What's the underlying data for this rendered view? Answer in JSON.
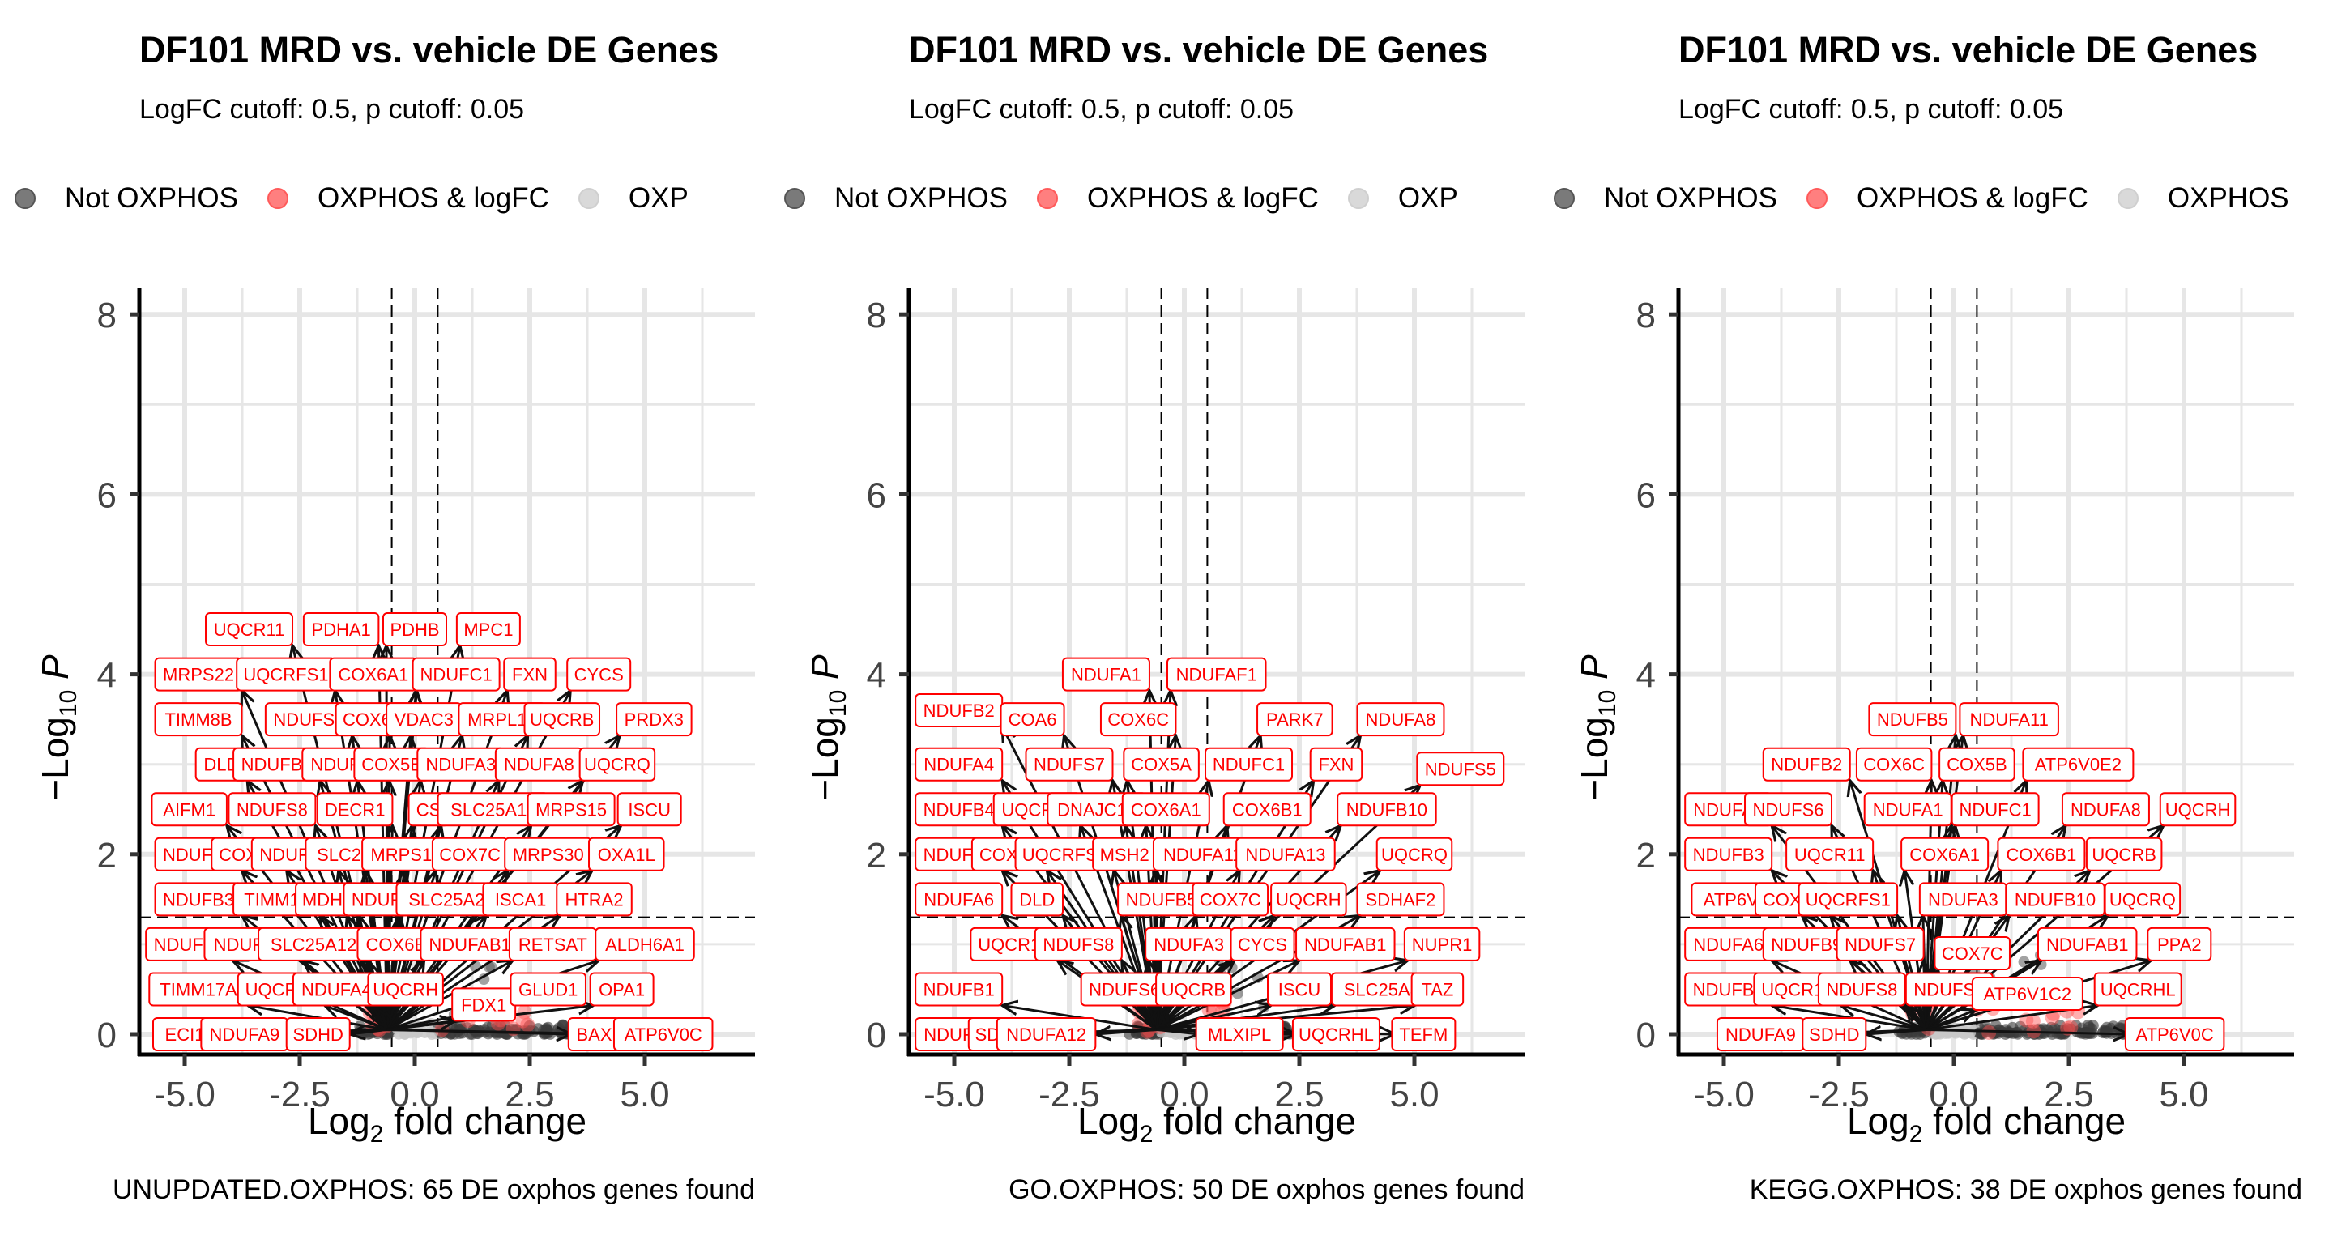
{
  "colors": {
    "not_oxphos": "#555555",
    "oxphos_logfc": "#ff4d4d",
    "oxphos": "#c8c8c8",
    "label_text": "#ff0000",
    "label_border": "#ff0000",
    "grid": "#e6e6e6",
    "axis": "#000000"
  },
  "panels": [
    {
      "title": "DF101 MRD vs. vehicle DE Genes",
      "subtitle": "LogFC cutoff: 0.5, p cutoff: 0.05",
      "legend": [
        "Not OXPHOS",
        "OXPHOS & logFC",
        "OXP"
      ],
      "caption": "UNUPDATED.OXPHOS: 65 DE oxphos genes found"
    },
    {
      "title": "DF101 MRD vs. vehicle DE Genes",
      "subtitle": "LogFC cutoff: 0.5, p cutoff: 0.05",
      "legend": [
        "Not OXPHOS",
        "OXPHOS & logFC",
        "OXP"
      ],
      "caption": "GO.OXPHOS: 50 DE oxphos genes found"
    },
    {
      "title": "DF101 MRD vs. vehicle DE Genes",
      "subtitle": "LogFC cutoff: 0.5, p cutoff: 0.05",
      "legend": [
        "Not OXPHOS",
        "OXPHOS & logFC",
        "OXPHOS"
      ],
      "caption": "KEGG.OXPHOS: 38 DE oxphos genes found"
    }
  ],
  "chart_data": [
    {
      "type": "scatter",
      "title": "DF101 MRD vs. vehicle DE Genes",
      "subtitle": "LogFC cutoff: 0.5, p cutoff: 0.05",
      "xlabel": "Log2 fold change",
      "ylabel": "-Log10 P",
      "xlim": [
        -6,
        7.3
      ],
      "ylim": [
        0,
        8.3
      ],
      "xticks": [
        -5.0,
        -2.5,
        0.0,
        2.5,
        5.0
      ],
      "xtick_labels": [
        "-5.0",
        "-2.5",
        "0.0",
        "2.5",
        "5.0"
      ],
      "yticks": [
        0,
        2,
        4,
        6,
        8
      ],
      "ytick_labels": [
        "0",
        "2",
        "4",
        "6",
        "8"
      ],
      "fc_cutoff": 0.5,
      "p_cutoff_line": 1.3,
      "grid": true,
      "legend_position": "top",
      "caption": "UNUPDATED.OXPHOS: 65 DE oxphos genes found",
      "labels": [
        {
          "gene": "UQCR11",
          "x": -3.6,
          "y": 4.5
        },
        {
          "gene": "PDHA1",
          "x": -1.6,
          "y": 4.5
        },
        {
          "gene": "PDHB",
          "x": 0.0,
          "y": 4.5
        },
        {
          "gene": "MPC1",
          "x": 1.6,
          "y": 4.5
        },
        {
          "gene": "MRPS22",
          "x": -4.7,
          "y": 4.0
        },
        {
          "gene": "UQCRFS1",
          "x": -2.8,
          "y": 4.0
        },
        {
          "gene": "COX6A1",
          "x": -0.9,
          "y": 4.0
        },
        {
          "gene": "NDUFC1",
          "x": 0.9,
          "y": 4.0
        },
        {
          "gene": "FXN",
          "x": 2.5,
          "y": 4.0
        },
        {
          "gene": "CYCS",
          "x": 4.0,
          "y": 4.0
        },
        {
          "gene": "TIMM8B",
          "x": -4.7,
          "y": 3.5
        },
        {
          "gene": "NDUFS7",
          "x": -2.3,
          "y": 3.5
        },
        {
          "gene": "COX6C",
          "x": -0.9,
          "y": 3.5
        },
        {
          "gene": "VDAC3",
          "x": 0.2,
          "y": 3.5
        },
        {
          "gene": "MRPL15",
          "x": 1.9,
          "y": 3.5
        },
        {
          "gene": "UQCRB",
          "x": 3.2,
          "y": 3.5
        },
        {
          "gene": "PRDX3",
          "x": 5.2,
          "y": 3.5
        },
        {
          "gene": "DLD",
          "x": -4.2,
          "y": 3.0
        },
        {
          "gene": "NDUFB2",
          "x": -3.0,
          "y": 3.0
        },
        {
          "gene": "NDUFA1",
          "x": -1.5,
          "y": 3.0
        },
        {
          "gene": "COX5B",
          "x": -0.5,
          "y": 3.0
        },
        {
          "gene": "NDUFA3",
          "x": 1.0,
          "y": 3.0
        },
        {
          "gene": "NDUFA8",
          "x": 2.7,
          "y": 3.0
        },
        {
          "gene": "UQCRQ",
          "x": 4.4,
          "y": 3.0
        },
        {
          "gene": "AIFM1",
          "x": -4.9,
          "y": 2.5
        },
        {
          "gene": "NDUFS8",
          "x": -3.1,
          "y": 2.5
        },
        {
          "gene": "DECR1",
          "x": -1.3,
          "y": 2.5
        },
        {
          "gene": "CS",
          "x": 0.3,
          "y": 2.5
        },
        {
          "gene": "SLC25A11",
          "x": 1.7,
          "y": 2.5
        },
        {
          "gene": "MRPS15",
          "x": 3.4,
          "y": 2.5
        },
        {
          "gene": "ISCU",
          "x": 5.1,
          "y": 2.5
        },
        {
          "gene": "NDUFB8",
          "x": -4.7,
          "y": 2.0
        },
        {
          "gene": "COX7B",
          "x": -3.6,
          "y": 2.0
        },
        {
          "gene": "NDUFS6",
          "x": -2.6,
          "y": 2.0
        },
        {
          "gene": "SLC25A3",
          "x": -1.3,
          "y": 2.0
        },
        {
          "gene": "MRPS11",
          "x": -0.2,
          "y": 2.0
        },
        {
          "gene": "COX7C",
          "x": 1.2,
          "y": 2.0
        },
        {
          "gene": "MRPS30",
          "x": 2.9,
          "y": 2.0
        },
        {
          "gene": "OXA1L",
          "x": 4.6,
          "y": 2.0
        },
        {
          "gene": "NDUFB3",
          "x": -4.7,
          "y": 1.5
        },
        {
          "gene": "TIMM10",
          "x": -3.0,
          "y": 1.5
        },
        {
          "gene": "MDH2",
          "x": -1.9,
          "y": 1.5
        },
        {
          "gene": "NDUFB5",
          "x": -0.6,
          "y": 1.5
        },
        {
          "gene": "SLC25A20",
          "x": 0.8,
          "y": 1.5
        },
        {
          "gene": "ISCA1",
          "x": 2.3,
          "y": 1.5
        },
        {
          "gene": "HTRA2",
          "x": 3.9,
          "y": 1.5
        },
        {
          "gene": "NDUFB9",
          "x": -4.9,
          "y": 1.0
        },
        {
          "gene": "NDUFA13",
          "x": -3.5,
          "y": 1.0
        },
        {
          "gene": "SLC25A12",
          "x": -2.2,
          "y": 1.0
        },
        {
          "gene": "COX6B1",
          "x": -0.3,
          "y": 1.0
        },
        {
          "gene": "NDUFAB1",
          "x": 1.2,
          "y": 1.0
        },
        {
          "gene": "RETSAT",
          "x": 3.0,
          "y": 1.0
        },
        {
          "gene": "ALDH6A1",
          "x": 5.0,
          "y": 1.0
        },
        {
          "gene": "TIMM17A",
          "x": -4.7,
          "y": 0.5
        },
        {
          "gene": "UQCR10",
          "x": -2.9,
          "y": 0.5
        },
        {
          "gene": "NDUFA4",
          "x": -1.7,
          "y": 0.5
        },
        {
          "gene": "UQCRH",
          "x": -0.2,
          "y": 0.5
        },
        {
          "gene": "FDX1",
          "x": 1.5,
          "y": 0.33
        },
        {
          "gene": "GLUD1",
          "x": 2.9,
          "y": 0.5
        },
        {
          "gene": "OPA1",
          "x": 4.5,
          "y": 0.5
        },
        {
          "gene": "ECI1",
          "x": -5.0,
          "y": 0.0
        },
        {
          "gene": "NDUFA9",
          "x": -3.7,
          "y": 0.0
        },
        {
          "gene": "SDHD",
          "x": -2.1,
          "y": 0.0
        },
        {
          "gene": "BAX",
          "x": 3.9,
          "y": 0.0
        },
        {
          "gene": "ATP6V0C",
          "x": 5.4,
          "y": 0.0
        }
      ]
    },
    {
      "type": "scatter",
      "title": "DF101 MRD vs. vehicle DE Genes",
      "subtitle": "LogFC cutoff: 0.5, p cutoff: 0.05",
      "xlabel": "Log2 fold change",
      "ylabel": "-Log10 P",
      "xlim": [
        -6,
        7.3
      ],
      "ylim": [
        0,
        8.3
      ],
      "xticks": [
        -5.0,
        -2.5,
        0.0,
        2.5,
        5.0
      ],
      "xtick_labels": [
        "-5.0",
        "-2.5",
        "0.0",
        "2.5",
        "5.0"
      ],
      "yticks": [
        0,
        2,
        4,
        6,
        8
      ],
      "ytick_labels": [
        "0",
        "2",
        "4",
        "6",
        "8"
      ],
      "fc_cutoff": 0.5,
      "p_cutoff_line": 1.3,
      "grid": true,
      "legend_position": "top",
      "caption": "GO.OXPHOS: 50 DE oxphos genes found",
      "labels": [
        {
          "gene": "NDUFA1",
          "x": -1.7,
          "y": 4.0
        },
        {
          "gene": "NDUFAF1",
          "x": 0.7,
          "y": 4.0
        },
        {
          "gene": "NDUFB2",
          "x": -4.9,
          "y": 3.6
        },
        {
          "gene": "COA6",
          "x": -3.3,
          "y": 3.5
        },
        {
          "gene": "COX6C",
          "x": -1.0,
          "y": 3.5
        },
        {
          "gene": "PARK7",
          "x": 2.4,
          "y": 3.5
        },
        {
          "gene": "NDUFA8",
          "x": 4.7,
          "y": 3.5
        },
        {
          "gene": "NDUFA4",
          "x": -4.9,
          "y": 3.0
        },
        {
          "gene": "NDUFS7",
          "x": -2.5,
          "y": 3.0
        },
        {
          "gene": "COX5A",
          "x": -0.5,
          "y": 3.0
        },
        {
          "gene": "NDUFC1",
          "x": 1.4,
          "y": 3.0
        },
        {
          "gene": "FXN",
          "x": 3.3,
          "y": 3.0
        },
        {
          "gene": "NDUFS5",
          "x": 6.0,
          "y": 2.95
        },
        {
          "gene": "NDUFB4",
          "x": -4.9,
          "y": 2.5
        },
        {
          "gene": "UQCR11",
          "x": -3.2,
          "y": 2.5
        },
        {
          "gene": "DNAJC15",
          "x": -1.9,
          "y": 2.5
        },
        {
          "gene": "COX6A1",
          "x": -0.4,
          "y": 2.5
        },
        {
          "gene": "COX6B1",
          "x": 1.8,
          "y": 2.5
        },
        {
          "gene": "NDUFB10",
          "x": 4.4,
          "y": 2.5
        },
        {
          "gene": "NDUFB3",
          "x": -4.9,
          "y": 2.0
        },
        {
          "gene": "COX7B",
          "x": -3.8,
          "y": 2.0
        },
        {
          "gene": "UQCRFS1",
          "x": -2.6,
          "y": 2.0
        },
        {
          "gene": "MSH2",
          "x": -1.3,
          "y": 2.0
        },
        {
          "gene": "NDUFA11",
          "x": 0.4,
          "y": 2.0
        },
        {
          "gene": "NDUFA13",
          "x": 2.2,
          "y": 2.0
        },
        {
          "gene": "UQCRQ",
          "x": 5.0,
          "y": 2.0
        },
        {
          "gene": "NDUFA6",
          "x": -4.9,
          "y": 1.5
        },
        {
          "gene": "DLD",
          "x": -3.2,
          "y": 1.5
        },
        {
          "gene": "NDUFB5",
          "x": -0.5,
          "y": 1.5
        },
        {
          "gene": "COX7C",
          "x": 1.0,
          "y": 1.5
        },
        {
          "gene": "UQCRH",
          "x": 2.7,
          "y": 1.5
        },
        {
          "gene": "SDHAF2",
          "x": 4.7,
          "y": 1.5
        },
        {
          "gene": "UQCR10",
          "x": -3.7,
          "y": 1.0
        },
        {
          "gene": "NDUFS8",
          "x": -2.3,
          "y": 1.0
        },
        {
          "gene": "NDUFA3",
          "x": 0.1,
          "y": 1.0
        },
        {
          "gene": "CYCS",
          "x": 1.7,
          "y": 1.0
        },
        {
          "gene": "NDUFAB1",
          "x": 3.5,
          "y": 1.0
        },
        {
          "gene": "NUPR1",
          "x": 5.6,
          "y": 1.0
        },
        {
          "gene": "NDUFB1",
          "x": -4.9,
          "y": 0.5
        },
        {
          "gene": "NDUFS6",
          "x": -1.3,
          "y": 0.5
        },
        {
          "gene": "UQCRB",
          "x": 0.2,
          "y": 0.5
        },
        {
          "gene": "ISCU",
          "x": 2.5,
          "y": 0.5
        },
        {
          "gene": "SLC25A33",
          "x": 4.4,
          "y": 0.5
        },
        {
          "gene": "TAZ",
          "x": 5.5,
          "y": 0.5
        },
        {
          "gene": "NDUFA9",
          "x": -4.9,
          "y": 0.0
        },
        {
          "gene": "SDHD",
          "x": -4.0,
          "y": 0.0
        },
        {
          "gene": "NDUFA12",
          "x": -3.0,
          "y": 0.0
        },
        {
          "gene": "MLXIPL",
          "x": 1.2,
          "y": 0.0
        },
        {
          "gene": "UQCRHL",
          "x": 3.3,
          "y": 0.0
        },
        {
          "gene": "TEFM",
          "x": 5.2,
          "y": 0.0
        }
      ]
    },
    {
      "type": "scatter",
      "title": "DF101 MRD vs. vehicle DE Genes",
      "subtitle": "LogFC cutoff: 0.5, p cutoff: 0.05",
      "xlabel": "Log2 fold change",
      "ylabel": "-Log10 P",
      "xlim": [
        -6,
        7.3
      ],
      "ylim": [
        0,
        8.3
      ],
      "xticks": [
        -5.0,
        -2.5,
        0.0,
        2.5,
        5.0
      ],
      "xtick_labels": [
        "-5.0",
        "-2.5",
        "0.0",
        "2.5",
        "5.0"
      ],
      "yticks": [
        0,
        2,
        4,
        6,
        8
      ],
      "ytick_labels": [
        "0",
        "2",
        "4",
        "6",
        "8"
      ],
      "fc_cutoff": 0.5,
      "p_cutoff_line": 1.3,
      "grid": true,
      "legend_position": "top",
      "caption": "KEGG.OXPHOS: 38 DE oxphos genes found",
      "labels": [
        {
          "gene": "NDUFB5",
          "x": -0.9,
          "y": 3.5
        },
        {
          "gene": "NDUFA11",
          "x": 1.2,
          "y": 3.5
        },
        {
          "gene": "NDUFB2",
          "x": -3.2,
          "y": 3.0
        },
        {
          "gene": "COX6C",
          "x": -1.3,
          "y": 3.0
        },
        {
          "gene": "COX5B",
          "x": 0.5,
          "y": 3.0
        },
        {
          "gene": "ATP6V0E2",
          "x": 2.7,
          "y": 3.0
        },
        {
          "gene": "NDUFA4",
          "x": -4.9,
          "y": 2.5
        },
        {
          "gene": "NDUFS6",
          "x": -3.6,
          "y": 2.5
        },
        {
          "gene": "NDUFA1",
          "x": -1.0,
          "y": 2.5
        },
        {
          "gene": "NDUFC1",
          "x": 0.9,
          "y": 2.5
        },
        {
          "gene": "NDUFA8",
          "x": 3.3,
          "y": 2.5
        },
        {
          "gene": "UQCRH",
          "x": 5.3,
          "y": 2.5
        },
        {
          "gene": "NDUFB3",
          "x": -4.9,
          "y": 2.0
        },
        {
          "gene": "UQCR11",
          "x": -2.7,
          "y": 2.0
        },
        {
          "gene": "COX6A1",
          "x": -0.2,
          "y": 2.0
        },
        {
          "gene": "COX6B1",
          "x": 1.9,
          "y": 2.0
        },
        {
          "gene": "UQCRB",
          "x": 3.7,
          "y": 2.0
        },
        {
          "gene": "ATP6V1B2",
          "x": -4.5,
          "y": 1.5
        },
        {
          "gene": "COX7B",
          "x": -3.5,
          "y": 1.5
        },
        {
          "gene": "UQCRFS1",
          "x": -2.3,
          "y": 1.5
        },
        {
          "gene": "NDUFA3",
          "x": 0.2,
          "y": 1.5
        },
        {
          "gene": "NDUFB10",
          "x": 2.2,
          "y": 1.5
        },
        {
          "gene": "UQCRQ",
          "x": 4.1,
          "y": 1.5
        },
        {
          "gene": "NDUFA6",
          "x": -4.9,
          "y": 1.0
        },
        {
          "gene": "NDUFB9",
          "x": -3.2,
          "y": 1.0
        },
        {
          "gene": "NDUFS7",
          "x": -1.6,
          "y": 1.0
        },
        {
          "gene": "COX7C",
          "x": 0.4,
          "y": 0.9
        },
        {
          "gene": "NDUFAB1",
          "x": 2.9,
          "y": 1.0
        },
        {
          "gene": "PPA2",
          "x": 4.9,
          "y": 1.0
        },
        {
          "gene": "NDUFB1",
          "x": -4.9,
          "y": 0.5
        },
        {
          "gene": "UQCR10",
          "x": -3.4,
          "y": 0.5
        },
        {
          "gene": "NDUFS8",
          "x": -2.0,
          "y": 0.5
        },
        {
          "gene": "NDUFS5",
          "x": -0.1,
          "y": 0.5
        },
        {
          "gene": "ATP6V1C2",
          "x": 1.6,
          "y": 0.45
        },
        {
          "gene": "UQCRHL",
          "x": 4.0,
          "y": 0.5
        },
        {
          "gene": "NDUFA9",
          "x": -4.2,
          "y": 0.0
        },
        {
          "gene": "SDHD",
          "x": -2.6,
          "y": 0.0
        },
        {
          "gene": "ATP6V0C",
          "x": 4.8,
          "y": 0.0
        }
      ]
    }
  ]
}
